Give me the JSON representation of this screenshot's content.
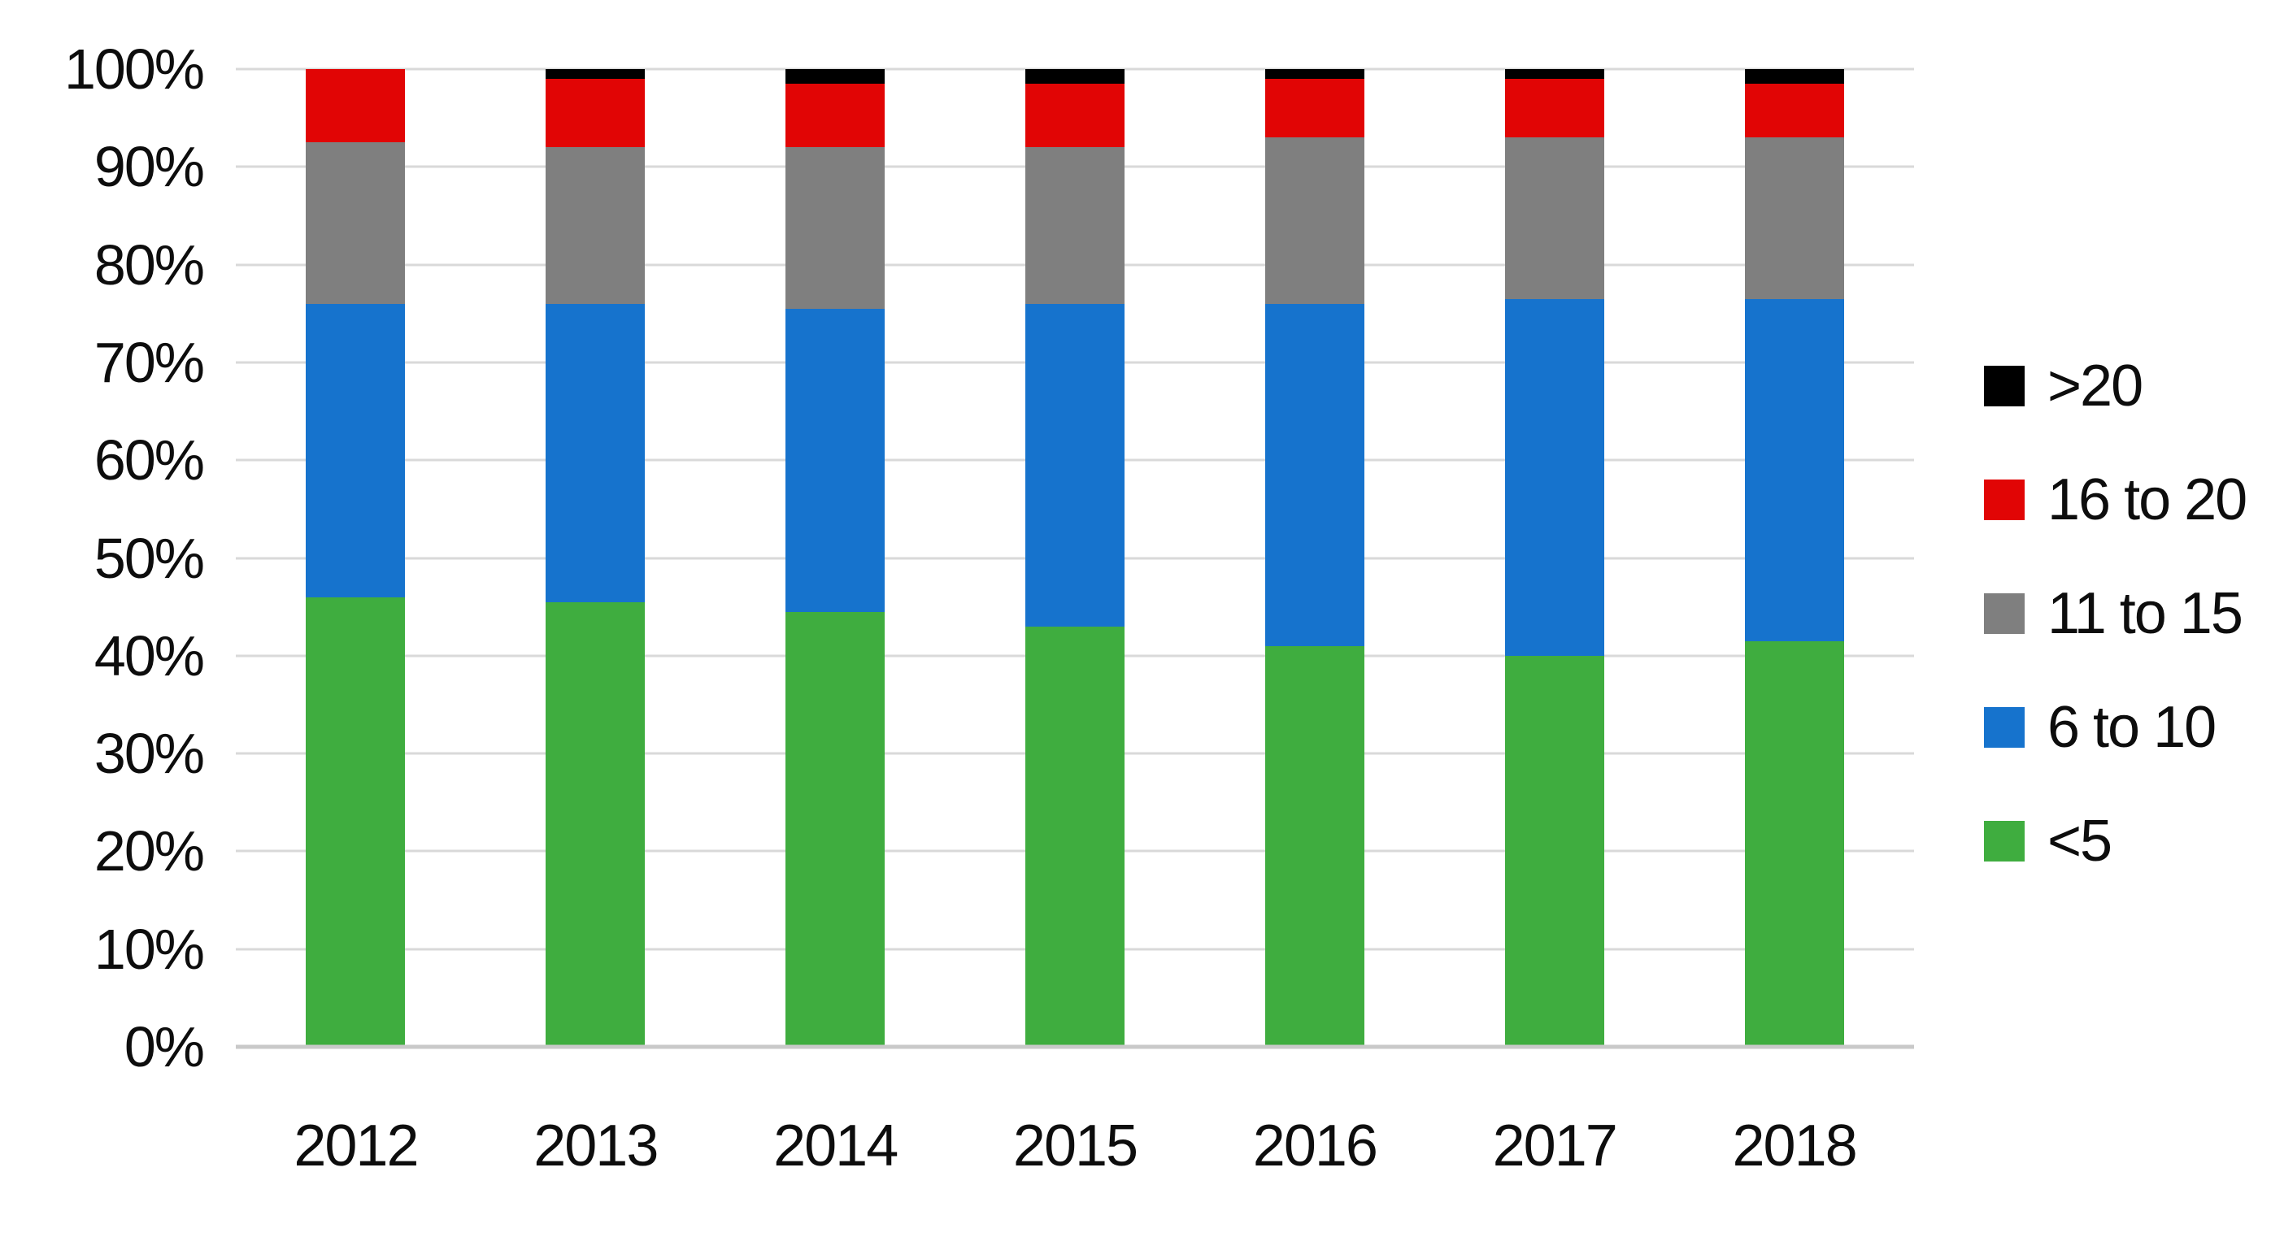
{
  "page": {
    "background": "#ffffff",
    "title": ""
  },
  "chart_data": {
    "type": "bar",
    "subtype": "stacked-100-percent-vertical",
    "title": "",
    "xlabel": "",
    "ylabel": "",
    "categories": [
      "2012",
      "2013",
      "2014",
      "2015",
      "2016",
      "2017",
      "2018"
    ],
    "series": [
      {
        "name": "<5",
        "color": "#3fad3f",
        "values": [
          46,
          45.5,
          44.5,
          43,
          41,
          40,
          41.5
        ]
      },
      {
        "name": "6 to 10",
        "color": "#1673cd",
        "values": [
          30,
          30.5,
          31,
          33,
          35,
          36.5,
          35
        ]
      },
      {
        "name": "11 to 15",
        "color": "#7f7f7f",
        "values": [
          16.5,
          16,
          16.5,
          16,
          17,
          16.5,
          16.5
        ]
      },
      {
        "name": "16 to 20",
        "color": "#e10505",
        "values": [
          7.5,
          7,
          6.5,
          6.5,
          6,
          6,
          5.5
        ]
      },
      {
        "name": ">20",
        "color": "#000000",
        "values": [
          0,
          1,
          1.5,
          1.5,
          1,
          1,
          1.5
        ]
      }
    ],
    "stack_order_bottom_to_top": [
      "<5",
      "6 to 10",
      "11 to 15",
      "16 to 20",
      ">20"
    ],
    "legend": {
      "position": "right",
      "order_top_to_bottom": [
        ">20",
        "16 to 20",
        "11 to 15",
        "6 to 10",
        "<5"
      ]
    },
    "y_axis": {
      "min": 0,
      "max": 100,
      "tick_step": 10,
      "ticks": [
        "100%",
        "90%",
        "80%",
        "70%",
        "60%",
        "50%",
        "40%",
        "30%",
        "20%",
        "10%",
        "0%"
      ],
      "grid": true
    },
    "colors": {
      "gridline": "#d9d9d9",
      "baseline": "#c9c9c9",
      "text": "#0d0d0d",
      "background": "#ffffff"
    }
  }
}
